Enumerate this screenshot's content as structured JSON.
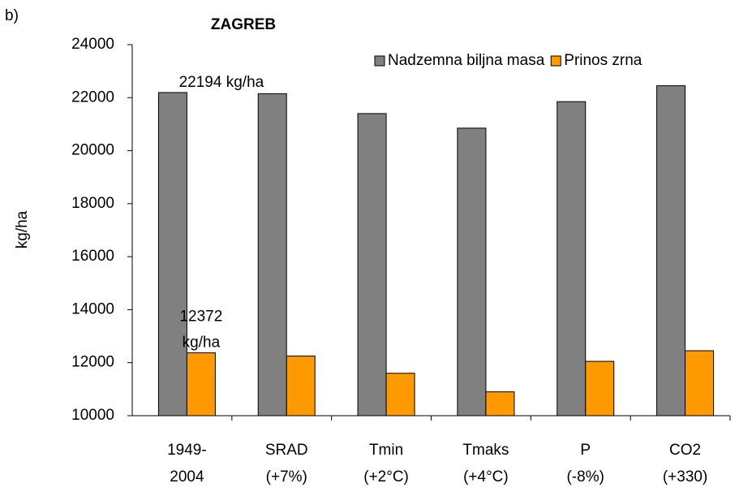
{
  "chart_data": {
    "type": "bar",
    "panel_label": "b)",
    "title": "ZAGREB",
    "y_label": "kg/ha",
    "categories": [
      [
        "1949-",
        "2004"
      ],
      [
        "SRAD",
        "(+7%)"
      ],
      [
        "Tmin",
        "(+2°C)"
      ],
      [
        "Tmaks",
        "(+4°C)"
      ],
      [
        "P",
        "(-8%)"
      ],
      [
        "CO2",
        "(+330)"
      ]
    ],
    "series": [
      {
        "name": "Nadzemna biljna masa",
        "color": "#808080",
        "values": [
          22194,
          22150,
          21400,
          20850,
          21850,
          22450
        ],
        "value_labels": [
          [
            "22194 kg/ha"
          ],
          null,
          null,
          null,
          null,
          null
        ]
      },
      {
        "name": "Prinos zrna",
        "color": "#ff9900",
        "values": [
          12372,
          12250,
          11600,
          10900,
          12050,
          12450
        ],
        "value_labels": [
          [
            "12372",
            "kg/ha"
          ],
          null,
          null,
          null,
          null,
          null
        ]
      }
    ],
    "ylim": [
      10000,
      24000
    ],
    "yticks": [
      10000,
      12000,
      14000,
      16000,
      18000,
      20000,
      22000,
      24000
    ],
    "grid": false,
    "legend": "top-right"
  }
}
